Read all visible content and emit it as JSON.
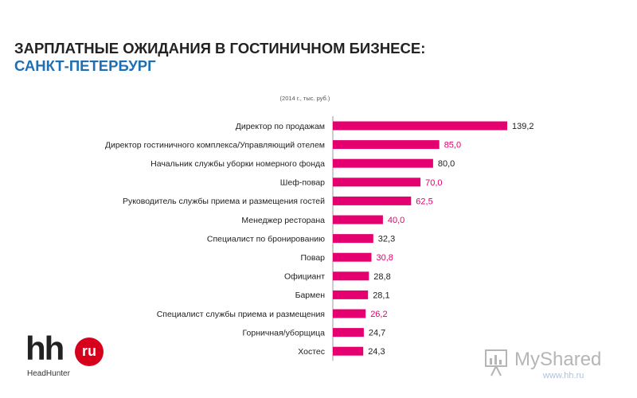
{
  "header": {
    "title_line1": "ЗАРПЛАТНЫЕ ОЖИДАНИЯ В ГОСТИНИЧНОМ БИЗНЕСЕ:",
    "title_line2": "САНКТ-ПЕТЕРБУРГ"
  },
  "chart_data": {
    "type": "bar",
    "orientation": "horizontal",
    "subtitle": "(2014 г., тыс. руб.)",
    "categories": [
      "Директор по продажам",
      "Директор гостиничного комплекса/Управляющий отелем",
      "Начальник службы уборки номерного фонда",
      "Шеф-повар",
      "Руководитель службы приема и размещения гостей",
      "Менеджер ресторана",
      "Специалист по бронированию",
      "Повар",
      "Официант",
      "Бармен",
      "Специалист службы приема и размещения",
      "Горничная/уборщица",
      "Хостес"
    ],
    "values": [
      139.2,
      85.0,
      80.0,
      70.0,
      62.5,
      40.0,
      32.3,
      30.8,
      28.8,
      28.1,
      26.2,
      24.7,
      24.3
    ],
    "value_labels": [
      "139,2",
      "85,0",
      "80,0",
      "70,0",
      "62,5",
      "40,0",
      "32,3",
      "30,8",
      "28,8",
      "28,1",
      "26,2",
      "24,7",
      "24,3"
    ],
    "value_label_colors": [
      "#222222",
      "#e4006e",
      "#222222",
      "#e4006e",
      "#e4006e",
      "#e4006e",
      "#222222",
      "#e4006e",
      "#222222",
      "#222222",
      "#e4006e",
      "#222222",
      "#222222"
    ],
    "xlim": [
      0,
      139.2
    ],
    "bar_color": "#e4006e",
    "axis_color": "#9a9a9a",
    "grid": false,
    "legend": "none"
  },
  "logo": {
    "hh": "hh",
    "ru": "ru",
    "sub": "HeadHunter"
  },
  "watermark": {
    "text": "MyShared",
    "url": "www.hh.ru"
  }
}
